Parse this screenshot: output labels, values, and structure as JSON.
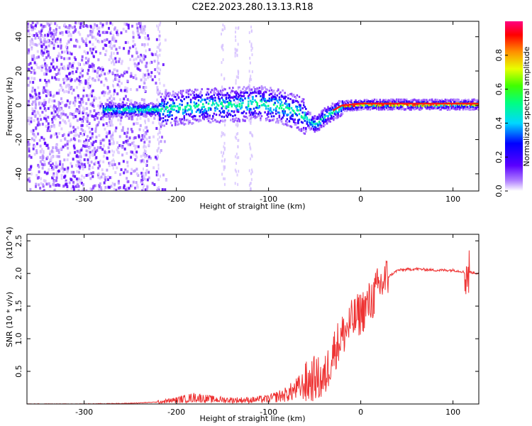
{
  "title": "C2E2.2023.280.13.13.R18",
  "chart_data": [
    {
      "type": "heatmap",
      "xlabel": "Height of straight line (km)",
      "ylabel": "Frequency (Hz)",
      "xlim": [
        -362,
        128
      ],
      "ylim": [
        -50,
        49
      ],
      "xticks": [
        -300,
        -200,
        -100,
        0,
        100
      ],
      "yticks": [
        -40,
        -20,
        0,
        20,
        40
      ],
      "colorbar": {
        "label": "Normalized spectral amplitude",
        "range": [
          0.0,
          1.0
        ],
        "ticks": [
          0.0,
          0.2,
          0.4,
          0.6,
          0.8
        ]
      },
      "ridge": {
        "x": [
          -280,
          -220,
          -180,
          -140,
          -110,
          -90,
          -70,
          -55,
          -50,
          -40,
          -30,
          -20,
          0,
          20,
          50,
          80,
          100,
          128
        ],
        "freq_hz": [
          -2,
          -2,
          0,
          1,
          2,
          0,
          -3,
          -9,
          -11,
          -6,
          -3,
          0,
          1,
          1,
          1,
          1,
          1,
          1
        ]
      }
    },
    {
      "type": "line",
      "xlabel": "Height of straight line (km)",
      "ylabel": "SNR (10 * v/v)",
      "y_multiplier": "(x10^4)",
      "xlim": [
        -362,
        128
      ],
      "ylim": [
        0,
        2.6
      ],
      "xticks": [
        -300,
        -200,
        -100,
        0,
        100
      ],
      "yticks": [
        0.5,
        1.0,
        1.5,
        2.0,
        2.5
      ],
      "series": [
        {
          "color": "#ee3333",
          "x": [
            -362,
            -300,
            -250,
            -220,
            -200,
            -180,
            -160,
            -140,
            -120,
            -100,
            -80,
            -60,
            -50,
            -40,
            -30,
            -20,
            -10,
            0,
            10,
            20,
            30,
            40,
            60,
            80,
            100,
            110,
            115,
            118,
            128
          ],
          "y": [
            0.0,
            0.0,
            0.01,
            0.03,
            0.06,
            0.1,
            0.07,
            0.06,
            0.06,
            0.08,
            0.15,
            0.3,
            0.4,
            0.35,
            0.8,
            1.05,
            1.25,
            1.4,
            1.55,
            1.8,
            1.95,
            2.05,
            2.07,
            2.05,
            2.05,
            2.03,
            2.0,
            2.02,
            2.0
          ]
        }
      ]
    }
  ]
}
